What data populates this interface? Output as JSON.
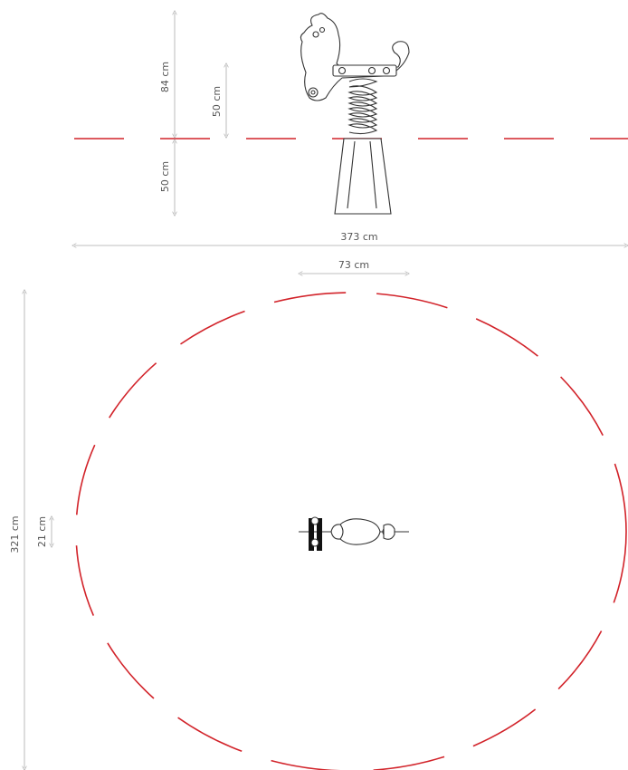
{
  "dimensions": {
    "total_height": "84 cm",
    "spring_height": "50 cm",
    "free_height": "50 cm",
    "overall_width": "373 cm",
    "product_length": "73 cm",
    "overall_depth": "321 cm",
    "product_width": "21 cm"
  },
  "colors": {
    "safety_zone": "#d2232a",
    "dimension_lines": "#aaaaaa",
    "outline": "#333333"
  }
}
